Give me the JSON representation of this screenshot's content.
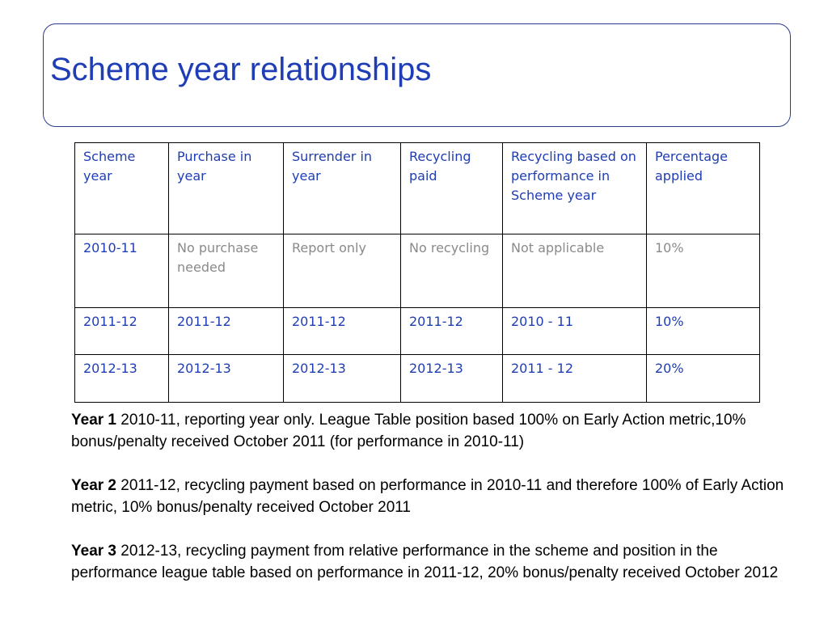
{
  "title": "Scheme year relationships",
  "table": {
    "headers": [
      "Scheme year",
      "Purchase in year",
      "Surrender in year",
      "Recycling paid",
      "Recycling based on performance in Scheme year",
      "Percentage applied"
    ],
    "rows": [
      [
        "2010-11",
        "No purchase needed",
        "Report only",
        "No recycling",
        "Not applicable",
        "10%"
      ],
      [
        "2011-12",
        "2011-12",
        "2011-12",
        "2011-12",
        "2010 - 11",
        "10%"
      ],
      [
        "2012-13",
        "2012-13",
        "2012-13",
        "2012-13",
        "2011 - 12",
        "20%"
      ]
    ]
  },
  "notes": [
    {
      "label": "Year 1",
      "text": "2010-11, reporting year only. League Table position based 100% on Early Action metric,10% bonus/penalty received October 2011 (for performance in 2010-11)"
    },
    {
      "label": "Year 2",
      "text": "2011-12, recycling payment based on performance in 2010-11 and therefore 100% of Early Action metric, 10% bonus/penalty received October 2011"
    },
    {
      "label": "Year 3",
      "text": "2012-13, recycling payment from relative performance in the scheme and position in the performance league table based on performance in 2011-12, 20% bonus/penalty received October 2012"
    }
  ],
  "colors": {
    "title": "#1f3db5",
    "cell_text": "#1f3db5",
    "muted_text": "#8a8a8a",
    "border": "#2b3a8f"
  }
}
